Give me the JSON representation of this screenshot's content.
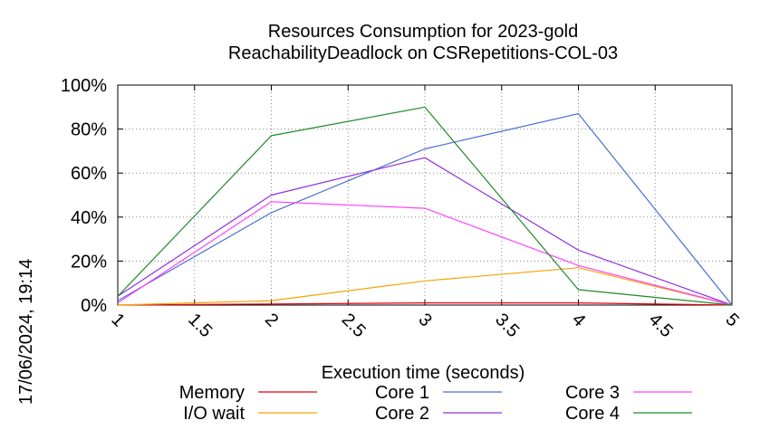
{
  "chart_data": {
    "type": "line",
    "title_line1": "Resources Consumption for 2023-gold",
    "title_line2": "ReachabilityDeadlock on CSRepetitions-COL-03",
    "xlabel": "Execution time (seconds)",
    "ylabel": "",
    "side_label": "17/06/2024, 19:14",
    "xlim": [
      1,
      5
    ],
    "ylim": [
      0,
      100
    ],
    "x_ticks": [
      "1",
      "1.5",
      "2",
      "2.5",
      "3",
      "3.5",
      "4",
      "4.5",
      "5"
    ],
    "y_ticks": [
      "0%",
      "20%",
      "40%",
      "60%",
      "80%",
      "100%"
    ],
    "grid": true,
    "legend_position": "bottom",
    "x": [
      1,
      2,
      3,
      4,
      5
    ],
    "series": [
      {
        "name": "Memory",
        "color": "#e8000b",
        "values": [
          0,
          0.5,
          1,
          1,
          0
        ]
      },
      {
        "name": "I/O wait",
        "color": "#f5a300",
        "values": [
          0,
          2,
          11,
          17,
          0
        ]
      },
      {
        "name": "Core 1",
        "color": "#4a6fd0",
        "values": [
          2,
          42,
          71,
          87,
          0
        ]
      },
      {
        "name": "Core 2",
        "color": "#9030e0",
        "values": [
          4,
          50,
          67,
          25,
          0
        ]
      },
      {
        "name": "Core 3",
        "color": "#ff40ff",
        "values": [
          1,
          47,
          44,
          18,
          0
        ]
      },
      {
        "name": "Core 4",
        "color": "#1f8a2a",
        "values": [
          4,
          77,
          90,
          7,
          0
        ]
      }
    ]
  }
}
